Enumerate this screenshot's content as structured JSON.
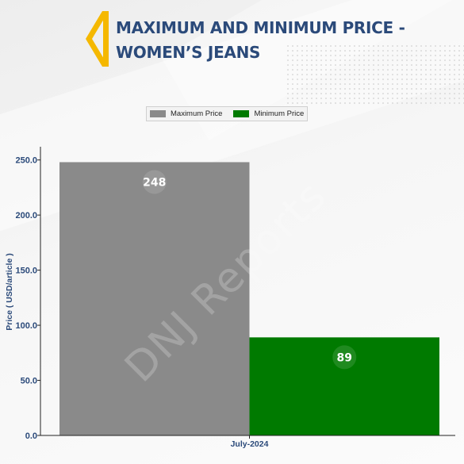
{
  "header": {
    "title": "MAXIMUM AND MINIMUM PRICE -\nWOMEN’S JEANS"
  },
  "colors": {
    "title": "#2b4a7a",
    "accent": "#f5b800",
    "max_bar": "#8a8a8a",
    "min_bar": "#007a00"
  },
  "watermark": "DNJ Reports",
  "chart_data": {
    "type": "bar",
    "categories": [
      "July-2024"
    ],
    "series": [
      {
        "name": "Maximum Price",
        "values": [
          248
        ],
        "color": "#8a8a8a"
      },
      {
        "name": "Minimum Price",
        "values": [
          89
        ],
        "color": "#007a00"
      }
    ],
    "ylabel": "Price ( USD/article )",
    "xlabel": "",
    "ylim": [
      0,
      262
    ],
    "yticks": [
      0,
      50,
      100,
      150,
      200,
      250
    ],
    "ytick_labels": [
      "0.0",
      "50.0",
      "100.0",
      "150.0",
      "200.0",
      "250.0"
    ],
    "legend_position": "top-center",
    "grid": false,
    "data_labels": [
      "248",
      "89"
    ]
  }
}
